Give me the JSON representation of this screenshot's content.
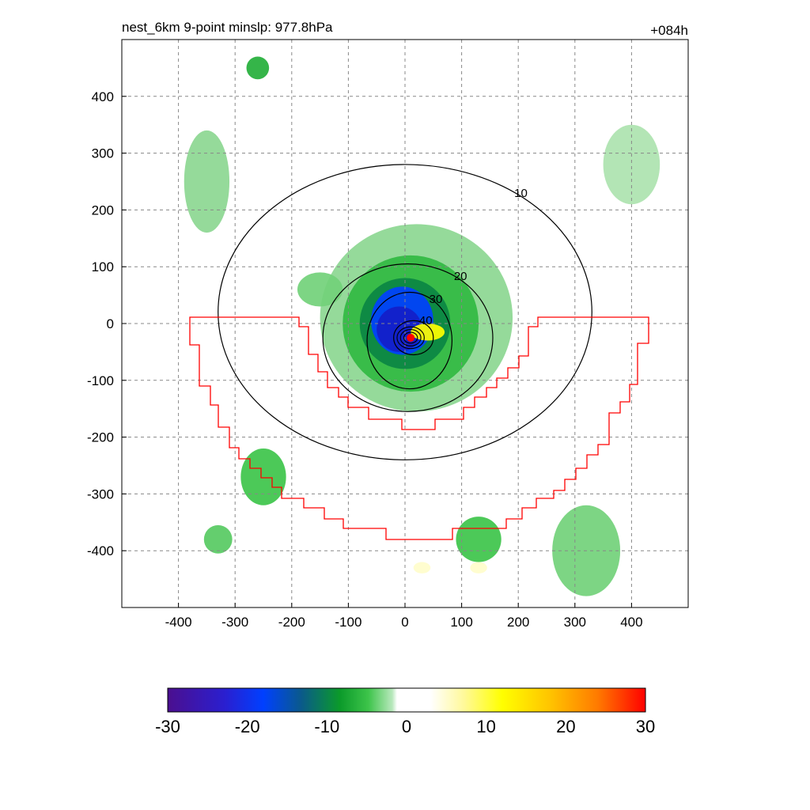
{
  "figure": {
    "title_left": "nest_6km  9-point minslp: 977.8hPa",
    "title_right": "+084h"
  },
  "chart_data": {
    "type": "heatmap",
    "title": "nest_6km  9-point minslp: 977.8hPa",
    "forecast_hour": "+084h",
    "xlabel": "",
    "ylabel": "",
    "xlim": [
      -500,
      500
    ],
    "ylim": [
      -500,
      500
    ],
    "x_ticks": [
      -400,
      -300,
      -200,
      -100,
      0,
      100,
      200,
      300,
      400
    ],
    "y_ticks": [
      400,
      300,
      200,
      100,
      0,
      -100,
      -200,
      -300,
      -400
    ],
    "grid": true,
    "grid_style": "dashed-gray",
    "storm_center": {
      "x": 10,
      "y": -25
    },
    "colorbar": {
      "range": [
        -30,
        30
      ],
      "ticks": [
        -30,
        -20,
        -10,
        0,
        10,
        20,
        30
      ],
      "orientation": "horizontal"
    },
    "contours": {
      "levels": [
        10,
        20,
        30,
        40
      ],
      "labels": [
        "10",
        "20",
        "30",
        "40"
      ],
      "rings": [
        {
          "level": 10,
          "cx": 0,
          "cy": 20,
          "rx": 330,
          "ry": 260
        },
        {
          "level": 20,
          "cx": 5,
          "cy": -25,
          "rx": 150,
          "ry": 130
        },
        {
          "level": 30,
          "cx": 8,
          "cy": -30,
          "rx": 75,
          "ry": 85
        },
        {
          "level": 40,
          "cx": 15,
          "cy": -25,
          "rx": 35,
          "ry": 30
        }
      ],
      "inner_levels": [
        50,
        60,
        70
      ]
    },
    "shading": [
      {
        "cx": 20,
        "cy": 10,
        "rx": 170,
        "ry": 165,
        "value": -5
      },
      {
        "cx": 10,
        "cy": 0,
        "rx": 120,
        "ry": 120,
        "value": -9
      },
      {
        "cx": 0,
        "cy": 0,
        "rx": 80,
        "ry": 80,
        "value": -13
      },
      {
        "cx": -5,
        "cy": 5,
        "rx": 55,
        "ry": 60,
        "value": -20
      },
      {
        "cx": -10,
        "cy": -10,
        "rx": 40,
        "ry": 40,
        "value": -24
      },
      {
        "cx": 40,
        "cy": -15,
        "rx": 30,
        "ry": 15,
        "value": 12
      },
      {
        "cx": -260,
        "cy": 450,
        "rx": 20,
        "ry": 20,
        "value": -10
      },
      {
        "cx": -350,
        "cy": 250,
        "rx": 40,
        "ry": 90,
        "value": -5
      },
      {
        "cx": 320,
        "cy": -400,
        "rx": 60,
        "ry": 80,
        "value": -6
      },
      {
        "cx": -250,
        "cy": -270,
        "rx": 40,
        "ry": 50,
        "value": -8
      },
      {
        "cx": -330,
        "cy": -380,
        "rx": 25,
        "ry": 25,
        "value": -7
      },
      {
        "cx": 130,
        "cy": -380,
        "rx": 40,
        "ry": 40,
        "value": -8
      },
      {
        "cx": -150,
        "cy": 60,
        "rx": 40,
        "ry": 30,
        "value": -6
      },
      {
        "cx": 400,
        "cy": 280,
        "rx": 50,
        "ry": 70,
        "value": -4
      },
      {
        "cx": 30,
        "cy": -430,
        "rx": 15,
        "ry": 10,
        "value": 6
      },
      {
        "cx": 130,
        "cy": -430,
        "rx": 15,
        "ry": 10,
        "value": 6
      }
    ]
  }
}
